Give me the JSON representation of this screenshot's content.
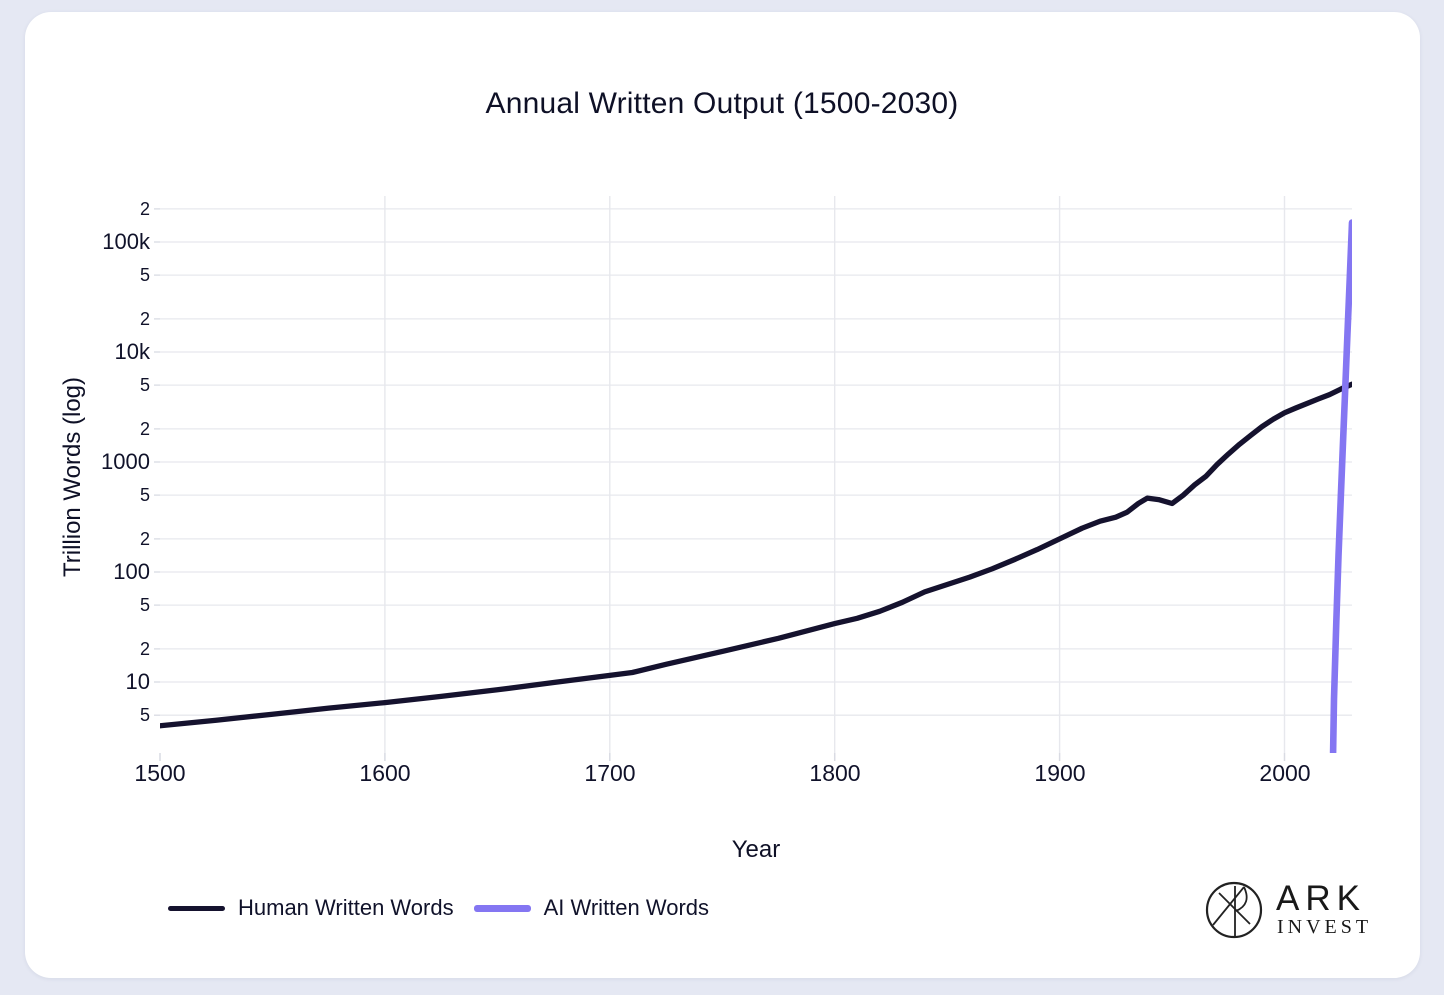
{
  "page": {
    "background": "#e5e8f3",
    "card_background": "#ffffff",
    "text_color": "#10122a"
  },
  "chart_data": {
    "type": "line",
    "title": "Annual Written Output (1500-2030)",
    "xlabel": "Year",
    "ylabel": "Trillion Words (log)",
    "x_range": [
      1500,
      2030
    ],
    "y_scale": "log",
    "y_range_log10": [
      0.355,
      5.418
    ],
    "grid": true,
    "legend_position": "bottom-left",
    "gridline_color": "#e7e8ed",
    "tick_mark_color": "#d9dbe3",
    "x_ticks": [
      {
        "label": "1500",
        "year": 1500
      },
      {
        "label": "1600",
        "year": 1600
      },
      {
        "label": "1700",
        "year": 1700
      },
      {
        "label": "1800",
        "year": 1800
      },
      {
        "label": "1900",
        "year": 1900
      },
      {
        "label": "2000",
        "year": 2000
      }
    ],
    "x_gridline_years": [
      1600,
      1700,
      1800,
      1900,
      2000
    ],
    "y_ticks": [
      {
        "label": "2",
        "value": 200000,
        "major": false
      },
      {
        "label": "100k",
        "value": 100000,
        "major": true
      },
      {
        "label": "5",
        "value": 50000,
        "major": false
      },
      {
        "label": "2",
        "value": 20000,
        "major": false
      },
      {
        "label": "10k",
        "value": 10000,
        "major": true
      },
      {
        "label": "5",
        "value": 5000,
        "major": false
      },
      {
        "label": "2",
        "value": 2000,
        "major": false
      },
      {
        "label": "1000",
        "value": 1000,
        "major": true
      },
      {
        "label": "5",
        "value": 500,
        "major": false
      },
      {
        "label": "2",
        "value": 200,
        "major": false
      },
      {
        "label": "100",
        "value": 100,
        "major": true
      },
      {
        "label": "5",
        "value": 50,
        "major": false
      },
      {
        "label": "2",
        "value": 20,
        "major": false
      },
      {
        "label": "10",
        "value": 10,
        "major": true
      },
      {
        "label": "5",
        "value": 5,
        "major": false
      }
    ],
    "series": [
      {
        "name": "Human Written Words",
        "color": "#15122e",
        "line_width": 5.3,
        "points": [
          [
            1500,
            4
          ],
          [
            1525,
            4.5
          ],
          [
            1550,
            5.1
          ],
          [
            1575,
            5.8
          ],
          [
            1600,
            6.5
          ],
          [
            1625,
            7.4
          ],
          [
            1650,
            8.5
          ],
          [
            1675,
            9.9
          ],
          [
            1700,
            11.5
          ],
          [
            1710,
            12.2
          ],
          [
            1725,
            14.5
          ],
          [
            1750,
            19
          ],
          [
            1775,
            25
          ],
          [
            1800,
            34
          ],
          [
            1810,
            38
          ],
          [
            1820,
            44
          ],
          [
            1830,
            53
          ],
          [
            1840,
            66
          ],
          [
            1850,
            77
          ],
          [
            1860,
            90
          ],
          [
            1870,
            107
          ],
          [
            1880,
            130
          ],
          [
            1890,
            160
          ],
          [
            1900,
            200
          ],
          [
            1910,
            250
          ],
          [
            1918,
            290
          ],
          [
            1925,
            315
          ],
          [
            1930,
            350
          ],
          [
            1935,
            420
          ],
          [
            1939,
            470
          ],
          [
            1944,
            455
          ],
          [
            1950,
            420
          ],
          [
            1955,
            500
          ],
          [
            1960,
            620
          ],
          [
            1965,
            740
          ],
          [
            1970,
            950
          ],
          [
            1975,
            1180
          ],
          [
            1980,
            1450
          ],
          [
            1985,
            1750
          ],
          [
            1990,
            2100
          ],
          [
            1995,
            2450
          ],
          [
            2000,
            2800
          ],
          [
            2005,
            3100
          ],
          [
            2010,
            3400
          ],
          [
            2015,
            3750
          ],
          [
            2020,
            4100
          ],
          [
            2025,
            4600
          ],
          [
            2030,
            5100
          ]
        ]
      },
      {
        "name": "AI Written Words",
        "color": "#8476f2",
        "line_width": 6.6,
        "points": [
          [
            2021.6,
            2.3
          ],
          [
            2022,
            7
          ],
          [
            2023,
            35
          ],
          [
            2024,
            140
          ],
          [
            2025,
            480
          ],
          [
            2026,
            1500
          ],
          [
            2027,
            4800
          ],
          [
            2028,
            15000
          ],
          [
            2029,
            48000
          ],
          [
            2030,
            150000
          ]
        ]
      }
    ]
  },
  "branding": {
    "name_top": "ARK",
    "name_bottom": "INVEST"
  }
}
